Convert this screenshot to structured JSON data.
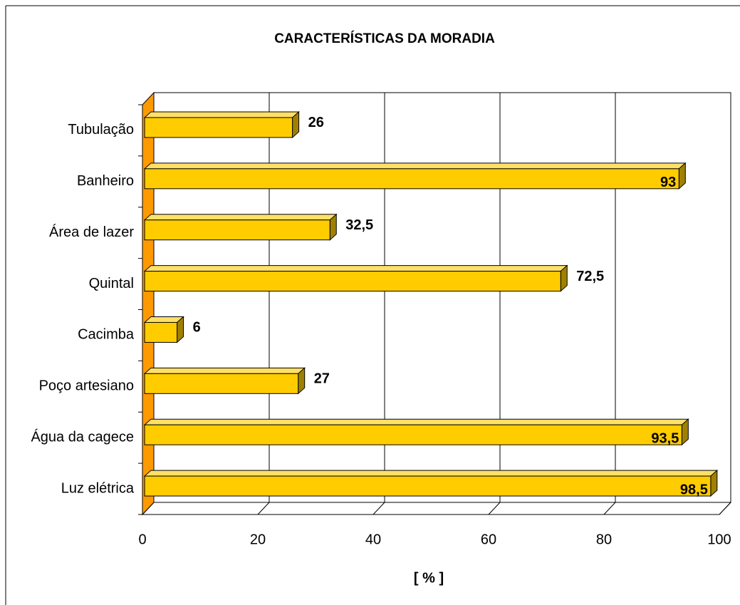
{
  "chart_data": {
    "type": "bar",
    "title": "CARACTERÍSTICAS DA MORADIA",
    "x_label": "[ % ]",
    "categories": [
      "Tubulação",
      "Banheiro",
      "Área de lazer",
      "Quintal",
      "Cacimba",
      "Poço artesiano",
      "Água da cagece",
      "Luz elétrica"
    ],
    "values": [
      26,
      93,
      32.5,
      72.5,
      6,
      27,
      93.5,
      98.5
    ],
    "value_labels": [
      "26",
      "93",
      "32,5",
      "72,5",
      "6",
      "27",
      "93,5",
      "98,5"
    ],
    "color": "#ffcc00",
    "xlim": [
      0,
      100
    ],
    "xticks": [
      0,
      20,
      40,
      60,
      80,
      100
    ],
    "grid": true
  }
}
